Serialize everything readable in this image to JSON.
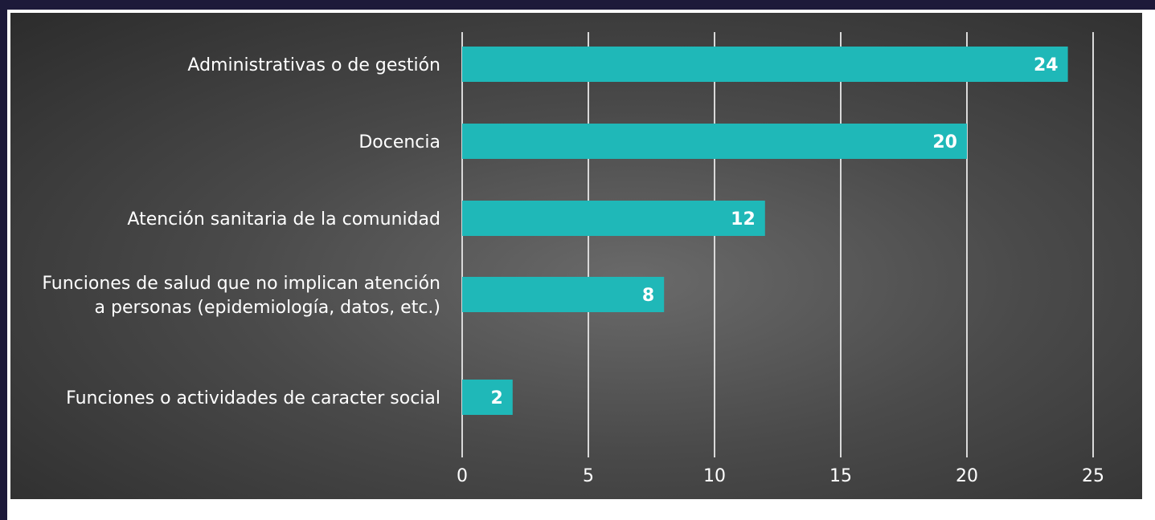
{
  "chart_data": {
    "type": "bar",
    "orientation": "horizontal",
    "categories": [
      [
        "Administrativas o de gestión"
      ],
      [
        "Docencia"
      ],
      [
        "Atención sanitaria de la comunidad"
      ],
      [
        "Funciones de salud que no implican atención",
        "a personas (epidemiología, datos, etc.)"
      ],
      [
        "Funciones o actividades de caracter social"
      ]
    ],
    "values": [
      24,
      20,
      12,
      8,
      2
    ],
    "value_labels": [
      "24",
      "20",
      "12",
      "8",
      "2"
    ],
    "xlim": [
      0,
      25
    ],
    "x_ticks": [
      0,
      5,
      10,
      15,
      20,
      25
    ],
    "x_tick_labels": [
      "0",
      "5",
      "10",
      "15",
      "20",
      "25"
    ],
    "title": "",
    "xlabel": "",
    "ylabel": "",
    "grid": true,
    "colors": {
      "bar": "#1fb8b8",
      "grid": "#d9d9d9",
      "text": "#ffffff",
      "background": "#3f3f3f"
    }
  }
}
